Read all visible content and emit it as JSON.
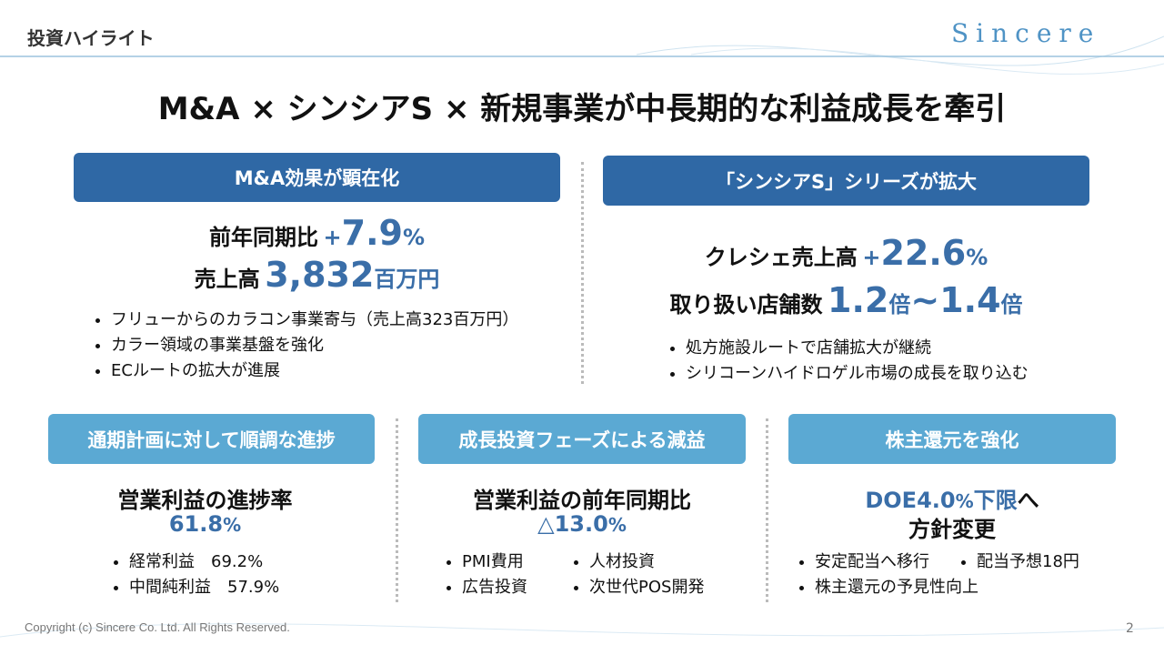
{
  "header": {
    "section": "投資ハイライト",
    "logo": "Sincere"
  },
  "title": "M&A × シンシアS × 新規事業が中長期的な利益成長を牽引",
  "top_panels": [
    {
      "heading": "M&A効果が顕在化",
      "metrics": [
        {
          "label": "前年同期比",
          "sign": "+",
          "number": "7.9",
          "unit": "%"
        },
        {
          "label": "売上高",
          "number": "3,832",
          "unit": "百万円"
        }
      ],
      "bullets": [
        "フリューからのカラコン事業寄与（売上高323百万円）",
        "カラー領域の事業基盤を強化",
        "ECルートの拡大が進展"
      ]
    },
    {
      "heading": "「シンシアS」シリーズが拡大",
      "metrics": [
        {
          "label": "クレシェ売上高",
          "sign": "+",
          "number": "22.6",
          "unit": "%"
        },
        {
          "label": "取り扱い店舗数",
          "number": "1.2",
          "unit": "倍",
          "number2": "~1.4",
          "unit2": "倍"
        }
      ],
      "bullets": [
        "処方施設ルートで店舗拡大が継続",
        "シリコーンハイドロゲル市場の成長を取り込む"
      ]
    }
  ],
  "bottom_panels": [
    {
      "heading": "通期計画に対して順調な進捗",
      "metric": "営業利益の進捗率",
      "number": "61.8",
      "unit": "%",
      "bullets": [
        "経常利益　69.2%",
        "中間純利益　57.9%"
      ]
    },
    {
      "heading": "成長投資フェーズによる減益",
      "metric": "営業利益の前年同期比",
      "number": "△13.0",
      "unit": "%",
      "bullets": [
        "PMI費用",
        "人材投資",
        "広告投資",
        "次世代POS開発"
      ]
    },
    {
      "heading": "株主還元を強化",
      "number": "DOE4.0",
      "unit": "%",
      "suffix": "下限",
      "tail": "へ",
      "metric": "方針変更",
      "bullets": [
        "安定配当へ移行",
        "配当予想18円",
        "株主還元の予見性向上"
      ]
    }
  ],
  "footer": {
    "copyright": "Copyright (c) Sincere Co. Ltd. All Rights Reserved.",
    "page": "2"
  }
}
